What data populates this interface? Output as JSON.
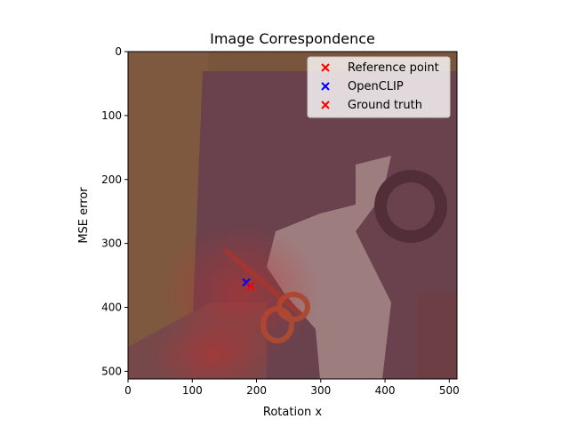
{
  "chart_data": {
    "type": "scatter",
    "title": "Image Correspondence",
    "xlabel": "Rotation x",
    "ylabel": "MSE error",
    "xlim": [
      0,
      512
    ],
    "ylim": [
      512,
      0
    ],
    "y_inverted": true,
    "x_ticks": [
      0,
      100,
      200,
      300,
      400,
      500
    ],
    "y_ticks": [
      0,
      100,
      200,
      300,
      400,
      500
    ],
    "grid": false,
    "legend_position": "top-right",
    "background": "image: photo of paper scissors on a table with red heatmap overlay",
    "series": [
      {
        "name": "Reference point",
        "marker": "x",
        "color": "#ff0000",
        "points": []
      },
      {
        "name": "OpenCLIP",
        "marker": "x",
        "color": "#0000ff",
        "points": [
          [
            184,
            361
          ]
        ]
      },
      {
        "name": "Ground truth",
        "marker": "x",
        "color": "#ff0000",
        "points": [
          [
            191,
            367
          ]
        ]
      }
    ]
  }
}
